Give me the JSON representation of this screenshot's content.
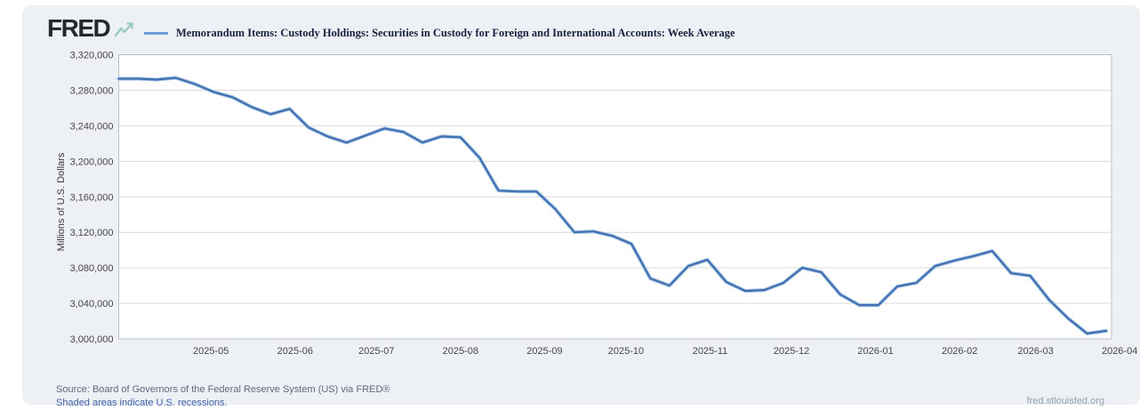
{
  "brand": {
    "logo_text": "FRED",
    "logo_icon": "fred-line-chart-squiggle-icon",
    "logo_icon_color": "#97cbbf"
  },
  "legend": {
    "swatch_color": "#6f9fd8",
    "series_label": "Memorandum Items: Custody Holdings: Securities in Custody for Foreign and International Accounts: Week Average"
  },
  "footer": {
    "source_line": "Source: Board of Governors of the Federal Reserve System (US) via FRED®",
    "recession_note": "Shaded areas indicate U.S. recessions.",
    "site_link": "fred.stlouisfed.org"
  },
  "chart_data": {
    "type": "line",
    "title": "Memorandum Items: Custody Holdings: Securities in Custody for Foreign and International Accounts: Week Average",
    "xlabel": "",
    "ylabel": "Millions of U.S. Dollars",
    "ylim": [
      3000000,
      3320000
    ],
    "y_ticks": [
      3320000,
      3280000,
      3240000,
      3200000,
      3160000,
      3120000,
      3080000,
      3040000,
      3000000
    ],
    "y_tick_labels": [
      "3,320,000",
      "3,280,000",
      "3,240,000",
      "3,200,000",
      "3,160,000",
      "3,120,000",
      "3,080,000",
      "3,040,000",
      "3,000,000"
    ],
    "x_tick_labels": [
      "2025-05",
      "2025-06",
      "2025-07",
      "2025-08",
      "2025-09",
      "2025-10",
      "2025-11",
      "2025-12",
      "2026-01",
      "2026-02",
      "2026-03",
      "2026-04"
    ],
    "x_domain": [
      "2025-03-28",
      "2026-03-29"
    ],
    "grid": "horizontal",
    "legend_position": "top",
    "line_color": "#3f70b2",
    "line_halo_color": "#a9c5e4",
    "gridline_color": "#d9d9d9",
    "plot_border_color": "#b9bec7",
    "frequency": "Weekly",
    "dates": [
      "2025-03-28",
      "2025-04-04",
      "2025-04-11",
      "2025-04-18",
      "2025-04-25",
      "2025-05-02",
      "2025-05-09",
      "2025-05-16",
      "2025-05-23",
      "2025-05-30",
      "2025-06-06",
      "2025-06-13",
      "2025-06-20",
      "2025-06-27",
      "2025-07-04",
      "2025-07-11",
      "2025-07-18",
      "2025-07-25",
      "2025-08-01",
      "2025-08-08",
      "2025-08-15",
      "2025-08-22",
      "2025-08-29",
      "2025-09-05",
      "2025-09-12",
      "2025-09-19",
      "2025-09-26",
      "2025-10-03",
      "2025-10-10",
      "2025-10-17",
      "2025-10-24",
      "2025-10-31",
      "2025-11-07",
      "2025-11-14",
      "2025-11-21",
      "2025-11-28",
      "2025-12-05",
      "2025-12-12",
      "2025-12-19",
      "2025-12-26",
      "2026-01-02",
      "2026-01-09",
      "2026-01-16",
      "2026-01-23",
      "2026-01-30",
      "2026-02-06",
      "2026-02-13",
      "2026-02-20",
      "2026-02-27",
      "2026-03-06",
      "2026-03-13",
      "2026-03-20",
      "2026-03-27"
    ],
    "values": [
      3293000,
      3293000,
      3292000,
      3294000,
      3287000,
      3278000,
      3272000,
      3261000,
      3253000,
      3259000,
      3238000,
      3228000,
      3221000,
      3229000,
      3237000,
      3233000,
      3221000,
      3228000,
      3227000,
      3204000,
      3167000,
      3166000,
      3166000,
      3146000,
      3120000,
      3121000,
      3116000,
      3107000,
      3068000,
      3060000,
      3082000,
      3089000,
      3064000,
      3054000,
      3055000,
      3063000,
      3080000,
      3075000,
      3050000,
      3038000,
      3038000,
      3059000,
      3063000,
      3082000,
      3088000,
      3093000,
      3099000,
      3074000,
      3071000,
      3044000,
      3023000,
      3006000,
      3009000
    ]
  }
}
